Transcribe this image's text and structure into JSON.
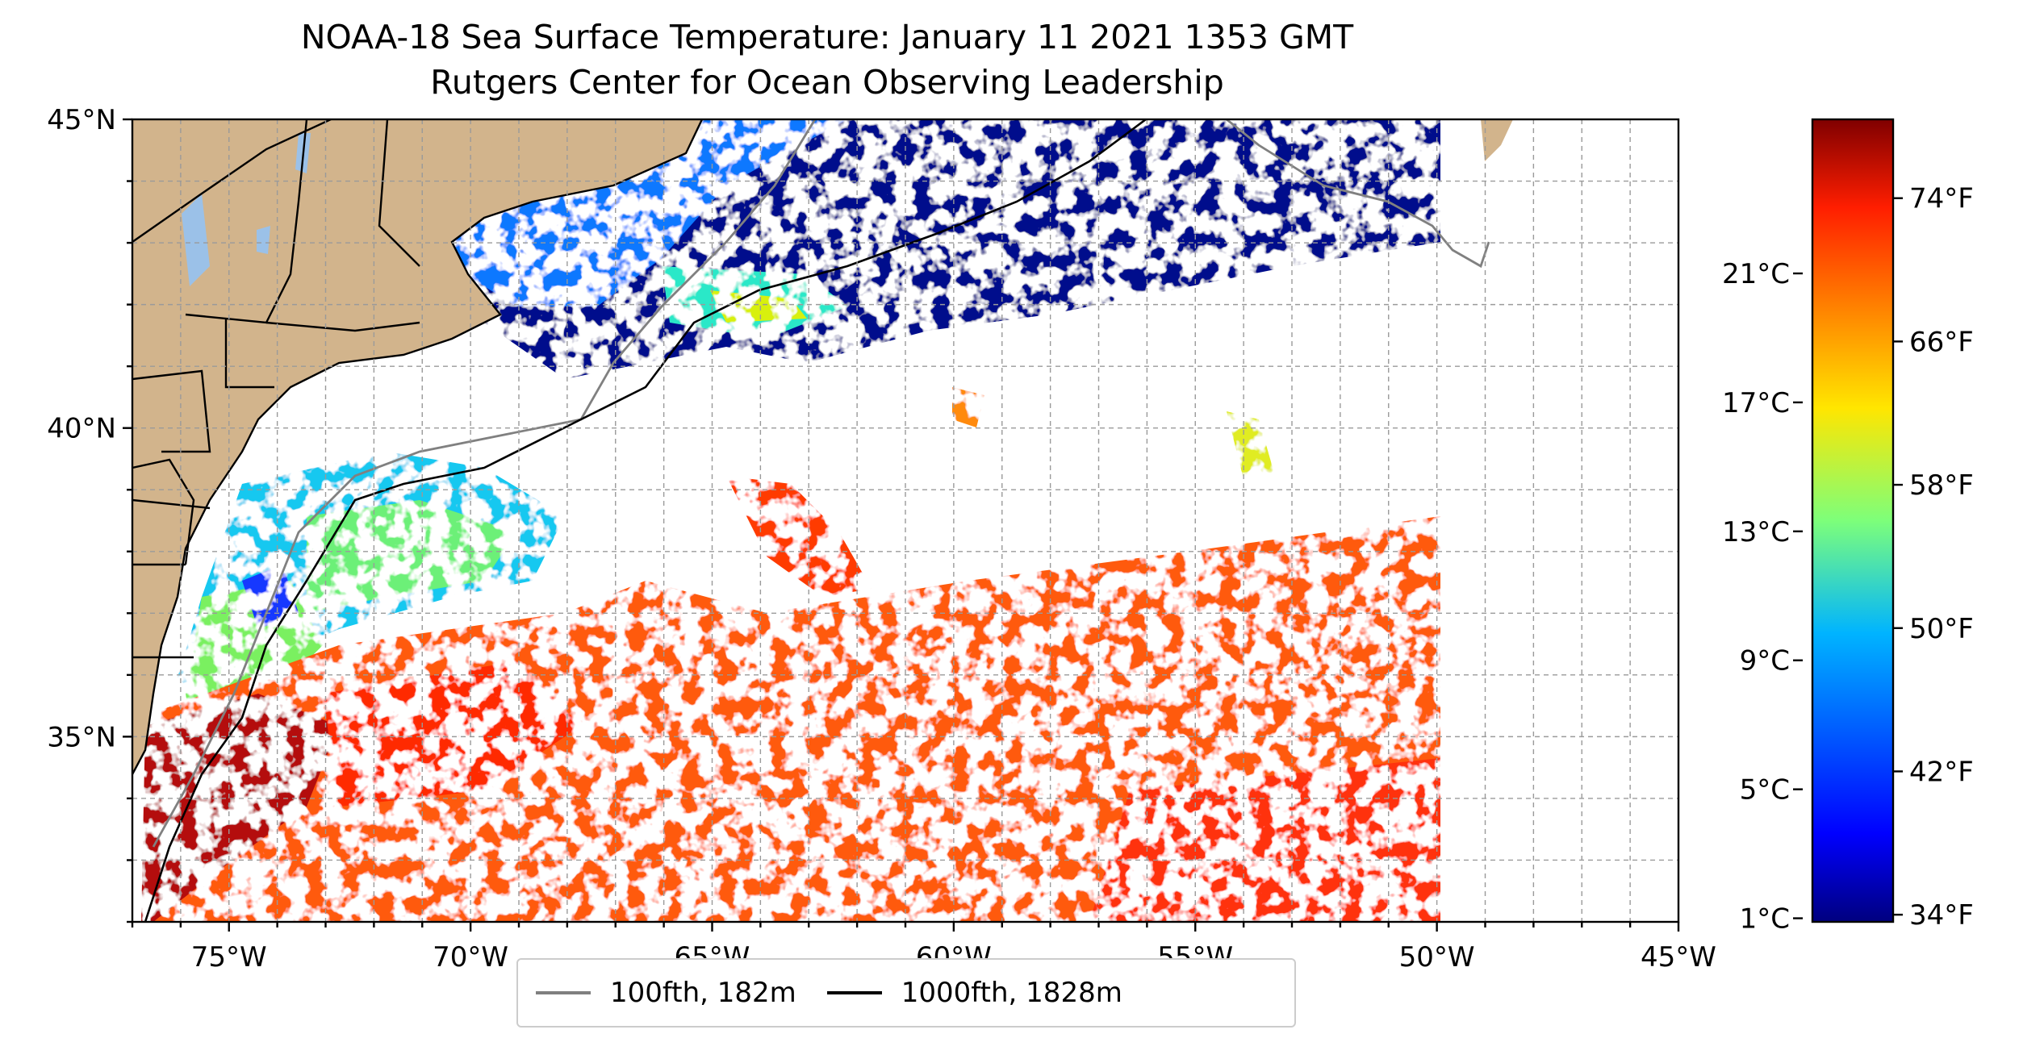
{
  "title": {
    "line1": "NOAA-18 Sea Surface Temperature: January 11 2021 1353 GMT",
    "line2": "Rutgers Center for Ocean Observing Leadership"
  },
  "map": {
    "lon_range": [
      -77,
      -45
    ],
    "lat_range": [
      32,
      45
    ],
    "lon_ticks": [
      {
        "value": -75,
        "label": "75°W"
      },
      {
        "value": -70,
        "label": "70°W"
      },
      {
        "value": -65,
        "label": "65°W"
      },
      {
        "value": -60,
        "label": "60°W"
      },
      {
        "value": -55,
        "label": "55°W"
      },
      {
        "value": -50,
        "label": "50°W"
      },
      {
        "value": -45,
        "label": "45°W"
      }
    ],
    "lat_ticks": [
      {
        "value": 45,
        "label": "45°N"
      },
      {
        "value": 40,
        "label": "40°N"
      },
      {
        "value": 35,
        "label": "35°N"
      }
    ],
    "gridlines": true,
    "land_color": "#d2b48c",
    "lake_color": "#9bc1e8",
    "no_data_color": "#ffffff"
  },
  "colorbar": {
    "colormap": "jet",
    "celsius_ticks": [
      {
        "value": 1,
        "label": "1°C"
      },
      {
        "value": 5,
        "label": "5°C"
      },
      {
        "value": 9,
        "label": "9°C"
      },
      {
        "value": 13,
        "label": "13°C"
      },
      {
        "value": 17,
        "label": "17°C"
      },
      {
        "value": 21,
        "label": "21°C"
      }
    ],
    "fahrenheit_ticks": [
      {
        "value": 34,
        "label": "34°F"
      },
      {
        "value": 42,
        "label": "42°F"
      },
      {
        "value": 50,
        "label": "50°F"
      },
      {
        "value": 58,
        "label": "58°F"
      },
      {
        "value": 66,
        "label": "66°F"
      },
      {
        "value": 74,
        "label": "74°F"
      }
    ]
  },
  "legend": {
    "placement": "bottom-center",
    "items": [
      {
        "label": "100fth, 182m",
        "color": "#808080"
      },
      {
        "label": "1000fth, 1828m",
        "color": "#000000"
      }
    ]
  }
}
